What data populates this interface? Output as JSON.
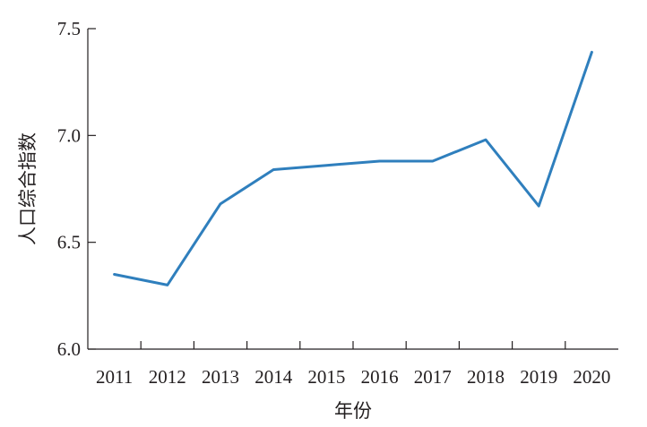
{
  "chart_data": {
    "type": "line",
    "title": "",
    "xlabel": "年份",
    "ylabel": "人口综合指数",
    "categories": [
      "2011",
      "2012",
      "2013",
      "2014",
      "2015",
      "2016",
      "2017",
      "2018",
      "2019",
      "2020"
    ],
    "series": [
      {
        "values": [
          6.35,
          6.3,
          6.68,
          6.84,
          6.86,
          6.88,
          6.88,
          6.98,
          6.67,
          7.39
        ]
      }
    ],
    "ylim": [
      6.0,
      7.5
    ],
    "yticks": [
      "6.0",
      "6.5",
      "7.0",
      "7.5"
    ],
    "grid": false,
    "colors": {
      "series": "#2f7fbd",
      "axis": "#231f20"
    }
  }
}
